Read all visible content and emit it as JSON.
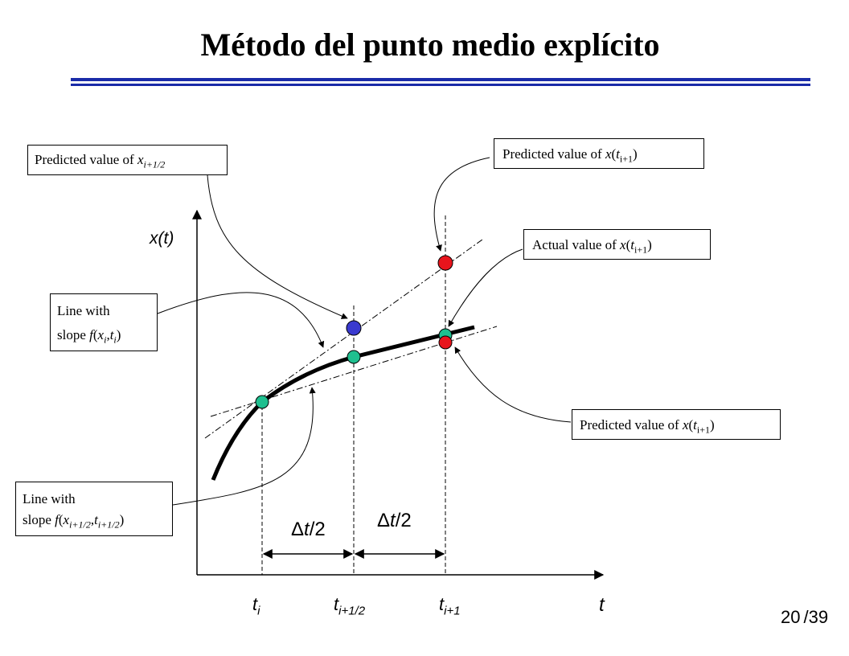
{
  "title": "Método del punto medio explícito",
  "labels": {
    "pred_half": {
      "text": "Predicted value of ",
      "var": "x",
      "sub": "i+1/2"
    },
    "pred_top": {
      "text": "Predicted value of ",
      "var": "x",
      "open": "(",
      "tvar": "t",
      "sub": "i+1",
      "close": ")"
    },
    "actual": {
      "text": "Actual value of ",
      "var": "x",
      "open": "(",
      "tvar": "t",
      "sub": "i+1",
      "close": ")"
    },
    "pred_bottom": {
      "text": "Predicted value of ",
      "var": "x",
      "open": "(",
      "tvar": "t",
      "sub": "i+1",
      "close": ")"
    },
    "line1": {
      "line1": "Line with",
      "line2_pre": "slope ",
      "f": "f",
      "open": "(",
      "x": "x",
      "xsub": "i",
      "comma": ",",
      "t": "t",
      "tsub": "i",
      "close": ")"
    },
    "line2": {
      "line1": "Line with",
      "line2_pre": "slope ",
      "f": "f",
      "open": "(",
      "x": "x",
      "xsub": "i+1/2",
      "comma": ",",
      "t": "t",
      "tsub": "i+1/2",
      "close": ")"
    }
  },
  "axes": {
    "y_label": "x(t)",
    "x_label": "t"
  },
  "ticks": [
    {
      "base": "t",
      "sub": "i"
    },
    {
      "base": "t",
      "sub": "i+1/2"
    },
    {
      "base": "t",
      "sub": "i+1"
    }
  ],
  "intervals": [
    {
      "delta": "Δ",
      "var": "t",
      "rest": "/2"
    },
    {
      "delta": "Δ",
      "var": "t",
      "rest": "/2"
    }
  ],
  "page": {
    "current": "20",
    "total": "/39"
  },
  "colors": {
    "rule": "#1a2ba8",
    "green_point": "#1fbf8f",
    "red_point": "#e8141c",
    "blue_point": "#3a3acf",
    "curve": "#000000"
  }
}
